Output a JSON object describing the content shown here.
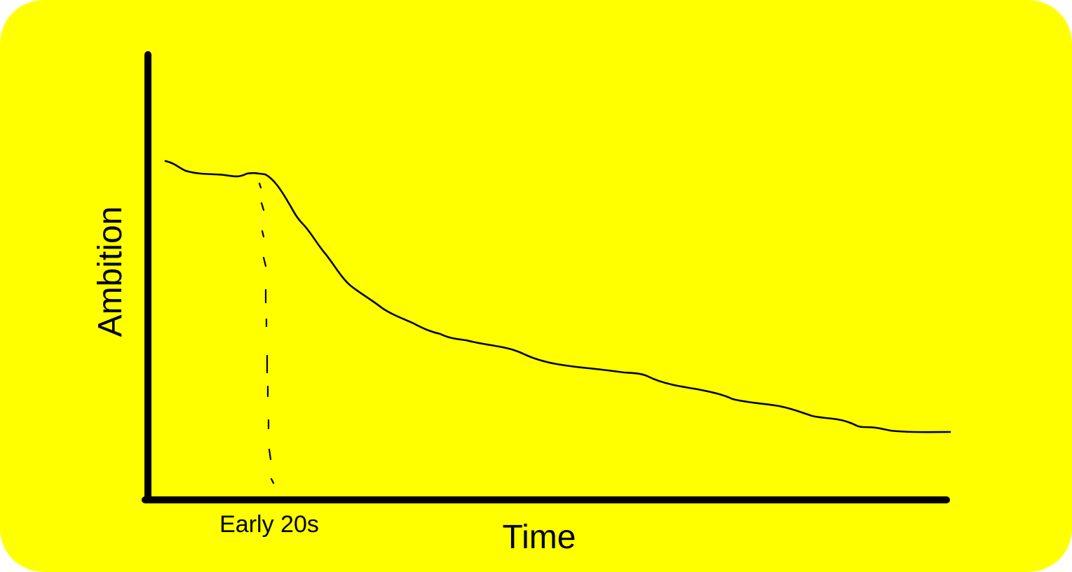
{
  "colors": {
    "background": "#FFFF00",
    "ink": "#000000"
  },
  "chart_data": {
    "type": "line",
    "title": "",
    "xlabel": "Time",
    "ylabel": "Ambition",
    "x_ticks": [
      "Early 20s"
    ],
    "marker": {
      "label": "Early 20s",
      "style": "dashed vertical line"
    },
    "grid": false,
    "legend": "none",
    "series": [
      {
        "values": [
          0.86,
          0.83,
          0.83,
          0.82,
          0.82,
          0.72,
          0.6,
          0.5,
          0.44,
          0.38,
          0.34,
          0.32,
          0.3,
          0.28,
          0.26,
          0.24,
          0.22,
          0.19,
          0.17,
          0.16,
          0.15
        ]
      }
    ]
  }
}
